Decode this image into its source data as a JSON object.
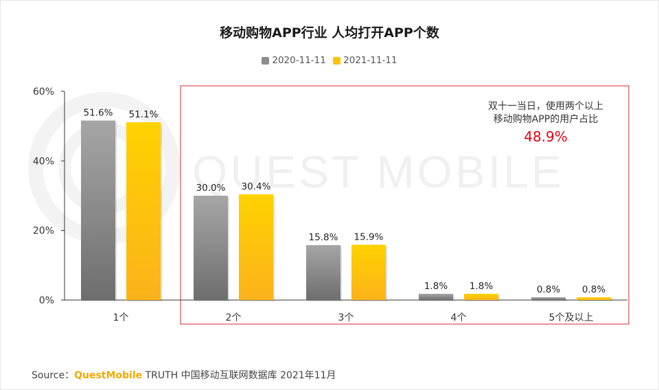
{
  "chart_data": {
    "type": "bar",
    "title": "移动购物APP行业 人均打开APP个数",
    "categories": [
      "1个",
      "2个",
      "3个",
      "4个",
      "5个及以上"
    ],
    "series": [
      {
        "name": "2020-11-11",
        "values": [
          51.6,
          30.0,
          15.8,
          1.8,
          0.8
        ],
        "labels": [
          "51.6%",
          "30.0%",
          "15.8%",
          "1.8%",
          "0.8%"
        ]
      },
      {
        "name": "2021-11-11",
        "values": [
          51.1,
          30.4,
          15.9,
          1.8,
          0.8
        ],
        "labels": [
          "51.1%",
          "30.4%",
          "15.9%",
          "1.8%",
          "0.8%"
        ]
      }
    ],
    "ylim": [
      0,
      60
    ],
    "yticks": [
      "0%",
      "20%",
      "40%",
      "60%"
    ],
    "grid": false,
    "legend_position": "top-center",
    "colors": {
      "2020-11-11": "#8c8c8c",
      "2021-11-11": "#ffc400",
      "highlight_box": "#d9272e",
      "highlight_value": "#e60012"
    }
  },
  "annotation": {
    "line1": "双十一当日，使用两个以上",
    "line2": "移动购物APP的用户占比",
    "value": "48.9%"
  },
  "watermark": "QUEST MOBILE",
  "source": {
    "prefix": "Source：",
    "brand": "QuestMobile",
    "suffix": " TRUTH 中国移动互联网数据库 2021年11月"
  }
}
